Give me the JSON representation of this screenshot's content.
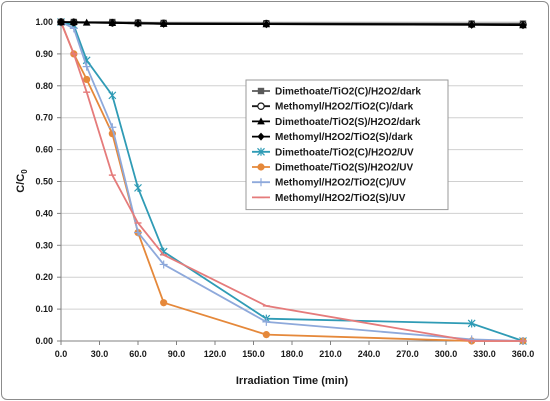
{
  "chart_data": {
    "type": "line",
    "title": "",
    "xlabel": "Irradiation Time (min)",
    "ylabel_main": "C/C",
    "ylabel_sub": "0",
    "xlim": [
      0,
      360
    ],
    "ylim": [
      0,
      1
    ],
    "x_ticks": [
      "0.0",
      "30.0",
      "60.0",
      "90.0",
      "120.0",
      "150.0",
      "180.0",
      "210.0",
      "240.0",
      "270.0",
      "300.0",
      "330.0",
      "360.0"
    ],
    "y_ticks": [
      "0.00",
      "0.10",
      "0.20",
      "0.30",
      "0.40",
      "0.50",
      "0.60",
      "0.70",
      "0.80",
      "0.90",
      "1.00"
    ],
    "grid": {
      "horizontal": true,
      "vertical": false
    },
    "legend_position": "right-middle",
    "series": [
      {
        "name": "Dimethoate/TiO2(C)/H2O2/dark",
        "color": "#595959",
        "marker": "square",
        "x": [
          0,
          10,
          40,
          60,
          80,
          160,
          320,
          360
        ],
        "y": [
          1.0,
          1.0,
          1.0,
          0.998,
          0.997,
          0.996,
          0.995,
          0.995
        ]
      },
      {
        "name": "Methomyl/H2O2/TiO2(C)/dark",
        "color": "#1a1a1a",
        "marker": "circle-open",
        "x": [
          0,
          10,
          40,
          60,
          80,
          160,
          320,
          360
        ],
        "y": [
          1.0,
          0.999,
          0.998,
          0.997,
          0.996,
          0.995,
          0.993,
          0.992
        ]
      },
      {
        "name": "Dimethoate/TiO2(S)/H2O2/dark",
        "color": "#000000",
        "marker": "triangle",
        "x": [
          0,
          10,
          20,
          40,
          60,
          80,
          160,
          320,
          360
        ],
        "y": [
          1.0,
          1.0,
          0.998,
          0.997,
          0.996,
          0.994,
          0.993,
          0.992,
          0.99
        ]
      },
      {
        "name": "Methomyl/H2O2/TiO2(S)/dark",
        "color": "#000000",
        "marker": "diamond",
        "x": [
          0,
          10,
          40,
          60,
          80,
          160,
          320,
          360
        ],
        "y": [
          1.0,
          0.998,
          0.997,
          0.995,
          0.994,
          0.993,
          0.991,
          0.99
        ]
      },
      {
        "name": "Dimethoate/TiO2(C)/H2O2/UV",
        "color": "#2f9bb5",
        "marker": "star",
        "x": [
          0,
          10,
          20,
          40,
          60,
          80,
          160,
          320,
          360
        ],
        "y": [
          1.0,
          0.99,
          0.88,
          0.77,
          0.48,
          0.28,
          0.07,
          0.055,
          0.0
        ]
      },
      {
        "name": "Dimethoate/TiO2(S)/H2O2/UV",
        "color": "#e5883a",
        "marker": "circle",
        "x": [
          0,
          10,
          20,
          40,
          60,
          80,
          160,
          320,
          360
        ],
        "y": [
          1.0,
          0.9,
          0.82,
          0.65,
          0.34,
          0.12,
          0.02,
          0.0,
          0.0
        ]
      },
      {
        "name": "Methomyl/H2O2/TiO2(C)/UV",
        "color": "#8ea9db",
        "marker": "plus",
        "x": [
          0,
          10,
          20,
          40,
          60,
          80,
          160,
          320,
          360
        ],
        "y": [
          1.0,
          0.98,
          0.86,
          0.67,
          0.34,
          0.24,
          0.06,
          0.005,
          0.0
        ]
      },
      {
        "name": "Methomyl/H2O2/TiO2(S)/UV",
        "color": "#e57b7b",
        "marker": "dash",
        "x": [
          0,
          10,
          20,
          40,
          60,
          80,
          160,
          320,
          360
        ],
        "y": [
          1.0,
          0.9,
          0.78,
          0.52,
          0.37,
          0.27,
          0.11,
          0.0,
          0.0
        ]
      }
    ]
  }
}
